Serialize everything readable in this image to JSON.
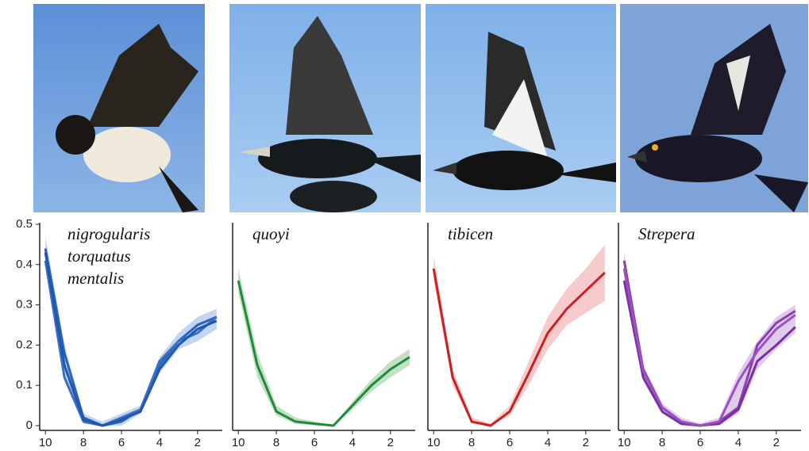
{
  "chart_data": [
    {
      "type": "line",
      "x": [
        10,
        9,
        8,
        7,
        6,
        5,
        4,
        3,
        2,
        1
      ],
      "xlim": [
        10.3,
        0.7
      ],
      "xticks": [
        10,
        8,
        6,
        4,
        2
      ],
      "ylim": [
        0,
        0.5
      ],
      "yticks": [
        0,
        0.1,
        0.2,
        0.3,
        0.4,
        0.5
      ],
      "band": {
        "color": "#a9c3ea",
        "lower": [
          0.4,
          0.11,
          0.005,
          0,
          0,
          0.03,
          0.13,
          0.19,
          0.21,
          0.24
        ],
        "upper": [
          0.47,
          0.2,
          0.03,
          0.01,
          0.03,
          0.05,
          0.17,
          0.23,
          0.27,
          0.29
        ]
      },
      "series": [
        {
          "name": "nigrogularis",
          "color": "#2a63b8",
          "values": [
            0.44,
            0.18,
            0.02,
            0,
            0.01,
            0.04,
            0.15,
            0.21,
            0.25,
            0.27
          ]
        },
        {
          "name": "torquatus",
          "color": "#3a70c4",
          "values": [
            0.41,
            0.12,
            0.01,
            0,
            0.02,
            0.04,
            0.16,
            0.21,
            0.23,
            0.27
          ]
        },
        {
          "name": "mentalis",
          "color": "#2058ad",
          "values": [
            0.43,
            0.15,
            0.015,
            0,
            0.015,
            0.035,
            0.14,
            0.2,
            0.24,
            0.26
          ]
        }
      ]
    },
    {
      "type": "line",
      "x": [
        10,
        9,
        8,
        7,
        6,
        5,
        4,
        3,
        2,
        1
      ],
      "xlim": [
        10.3,
        0.7
      ],
      "xticks": [
        10,
        8,
        6,
        4,
        2
      ],
      "ylim": [
        0,
        0.5
      ],
      "band": {
        "color": "#a8d3a8",
        "lower": [
          0.33,
          0.12,
          0.025,
          0.005,
          0,
          0,
          0.04,
          0.085,
          0.12,
          0.15
        ],
        "upper": [
          0.39,
          0.18,
          0.05,
          0.02,
          0.01,
          0,
          0.06,
          0.115,
          0.16,
          0.19
        ]
      },
      "series": [
        {
          "name": "quoyi",
          "color": "#1e8a3a",
          "values": [
            0.36,
            0.15,
            0.035,
            0.01,
            0.005,
            0,
            0.05,
            0.1,
            0.14,
            0.17
          ]
        }
      ]
    },
    {
      "type": "line",
      "x": [
        10,
        9,
        8,
        7,
        6,
        5,
        4,
        3,
        2,
        1
      ],
      "xlim": [
        10.3,
        0.7
      ],
      "xticks": [
        10,
        8,
        6,
        4,
        2
      ],
      "ylim": [
        0,
        0.5
      ],
      "band": {
        "color": "#f4b5b5",
        "lower": [
          0.36,
          0.1,
          0.005,
          0,
          0.025,
          0.1,
          0.19,
          0.25,
          0.28,
          0.31
        ],
        "upper": [
          0.42,
          0.14,
          0.02,
          0.005,
          0.05,
          0.16,
          0.27,
          0.34,
          0.39,
          0.45
        ]
      },
      "series": [
        {
          "name": "tibicen",
          "color": "#cc1f1f",
          "values": [
            0.39,
            0.12,
            0.01,
            0,
            0.035,
            0.13,
            0.23,
            0.29,
            0.335,
            0.38
          ]
        }
      ]
    },
    {
      "type": "line",
      "x": [
        10,
        9,
        8,
        7,
        6,
        5,
        4,
        3,
        2,
        1
      ],
      "xlim": [
        10.3,
        0.7
      ],
      "xticks": [
        10,
        8,
        6,
        4,
        2
      ],
      "ylim": [
        0,
        0.5
      ],
      "label": "Strepera",
      "band": {
        "color": "#d2b6e4",
        "lower": [
          0.34,
          0.11,
          0.03,
          0,
          0,
          0,
          0.03,
          0.14,
          0.19,
          0.23
        ],
        "upper": [
          0.43,
          0.15,
          0.055,
          0.02,
          0.005,
          0.02,
          0.13,
          0.21,
          0.27,
          0.3
        ]
      },
      "series": [
        {
          "color": "#8a3eb0",
          "values": [
            0.41,
            0.14,
            0.045,
            0.01,
            0,
            0.01,
            0.045,
            0.2,
            0.255,
            0.285
          ]
        },
        {
          "color": "#7a2ea3",
          "values": [
            0.36,
            0.12,
            0.035,
            0.005,
            0,
            0.005,
            0.04,
            0.16,
            0.2,
            0.245
          ]
        },
        {
          "color": "#9a50be",
          "values": [
            0.39,
            0.135,
            0.045,
            0.01,
            0,
            0.01,
            0.11,
            0.185,
            0.24,
            0.275
          ]
        }
      ]
    }
  ]
}
